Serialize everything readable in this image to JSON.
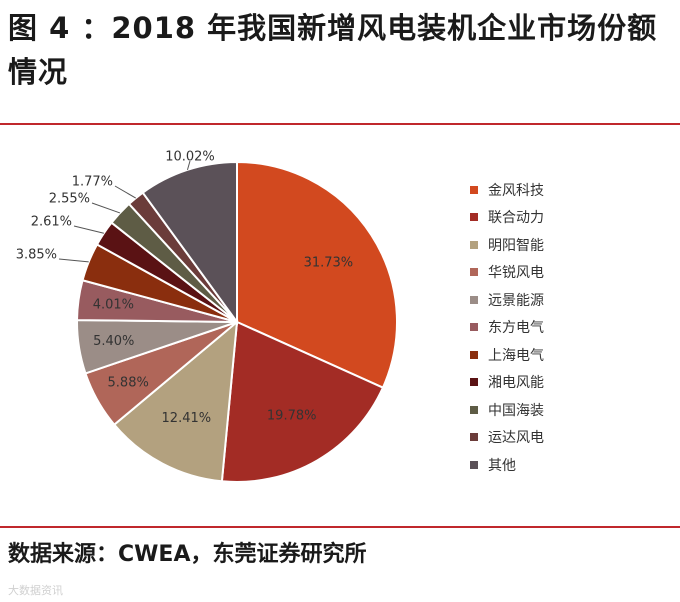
{
  "title": "图 4 ：2018 年我国新增风电装机企业市场份额情况",
  "source": "数据来源：CWEA，东莞证券研究所",
  "watermark": "大数据资讯",
  "chart_data": {
    "type": "pie",
    "title": "",
    "legend_position": "right",
    "slices": [
      {
        "name": "金风科技",
        "value": 31.73,
        "label": "31.73%",
        "color": "#d2491f"
      },
      {
        "name": "联合动力",
        "value": 19.78,
        "label": "19.78%",
        "color": "#a32c25"
      },
      {
        "name": "明阳智能",
        "value": 12.41,
        "label": "12.41%",
        "color": "#b3a17f"
      },
      {
        "name": "华锐风电",
        "value": 5.88,
        "label": "5.88%",
        "color": "#b06659"
      },
      {
        "name": "远景能源",
        "value": 5.4,
        "label": "5.40%",
        "color": "#9b8d87"
      },
      {
        "name": "东方电气",
        "value": 4.01,
        "label": "4.01%",
        "color": "#985b5f"
      },
      {
        "name": "上海电气",
        "value": 3.85,
        "label": "3.85%",
        "color": "#8a2e0e"
      },
      {
        "name": "湘电风能",
        "value": 2.61,
        "label": "2.61%",
        "color": "#5a1214"
      },
      {
        "name": "中国海装",
        "value": 2.55,
        "label": "2.55%",
        "color": "#5e5c45"
      },
      {
        "name": "运达风电",
        "value": 1.77,
        "label": "1.77%",
        "color": "#6b3c3a"
      },
      {
        "name": "其他",
        "value": 10.02,
        "label": "10.02%",
        "color": "#5b5158"
      }
    ]
  }
}
